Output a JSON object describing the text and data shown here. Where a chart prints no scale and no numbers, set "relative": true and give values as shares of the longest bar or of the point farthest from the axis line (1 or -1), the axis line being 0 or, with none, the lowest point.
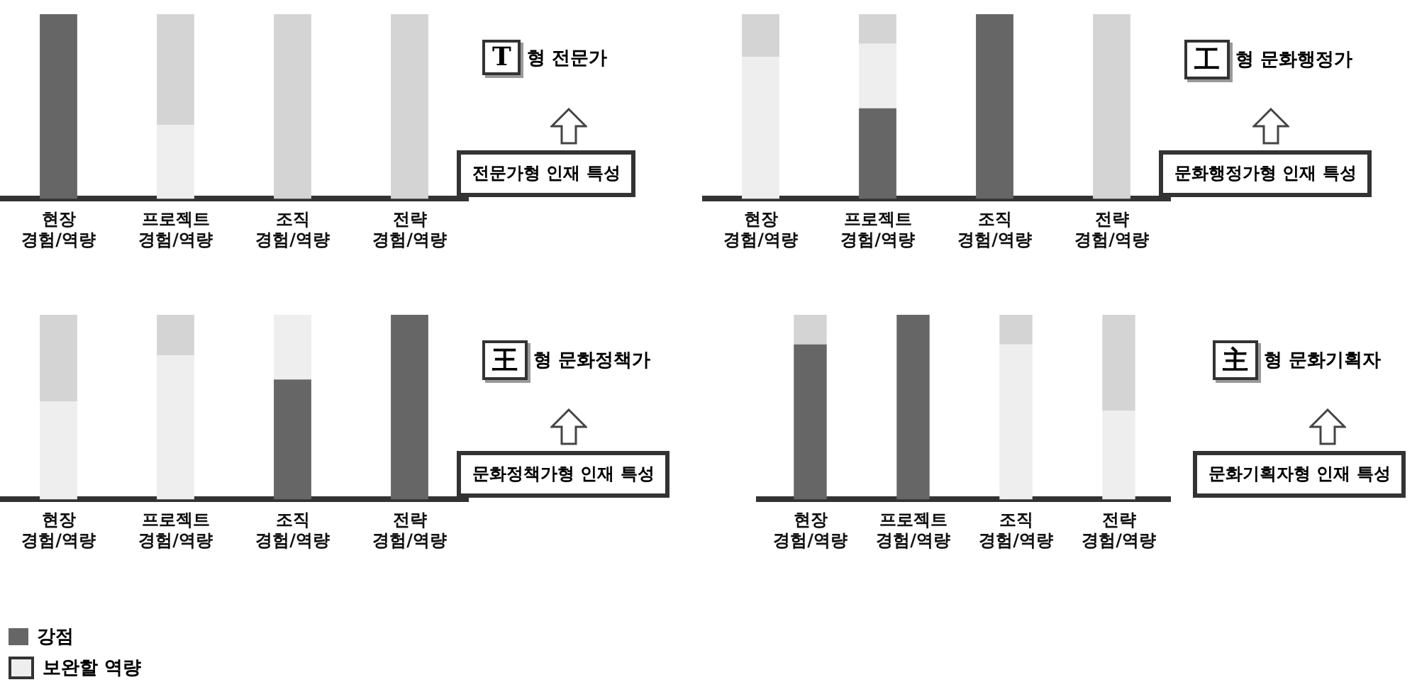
{
  "chart_data": [
    {
      "type": "bar",
      "stacked": true,
      "relative": true,
      "grid": false,
      "categories": [
        "현장 경험/역량",
        "프로젝트 경험/역량",
        "조직 경험/역량",
        "전략 경험/역량"
      ],
      "annotations": [
        "T 형 전문가",
        "전문가형 인재 특성"
      ],
      "series": [
        {
          "color": "#666666",
          "values": [
            1,
            0,
            0,
            0
          ]
        },
        {
          "color": "#eeeeee",
          "values": [
            0,
            0.4,
            0,
            0
          ]
        },
        {
          "color": "#d4d4d4",
          "values": [
            0,
            0.6,
            1,
            1
          ]
        }
      ]
    },
    {
      "type": "bar",
      "stacked": true,
      "relative": true,
      "grid": false,
      "categories": [
        "현장 경험/역량",
        "프로젝트 경험/역량",
        "조직 경험/역량",
        "전략 경험/역량"
      ],
      "annotations": [
        "工 형 문화행정가",
        "문화행정가형 인재 특성"
      ],
      "series": [
        {
          "color": "#666666",
          "values": [
            0,
            0.49,
            1,
            0
          ]
        },
        {
          "color": "#eeeeee",
          "values": [
            0.77,
            0.35,
            0,
            0
          ]
        },
        {
          "color": "#d4d4d4",
          "values": [
            0.23,
            0.16,
            0,
            1
          ]
        }
      ]
    },
    {
      "type": "bar",
      "stacked": true,
      "relative": true,
      "grid": false,
      "legend": "bottom left",
      "categories": [
        "현장 경험/역량",
        "프로젝트 경험/역량",
        "조직 경험/역량",
        "전략 경험/역량"
      ],
      "annotations": [
        "王 형 문화정책가",
        "문화정책가형 인재 특성"
      ],
      "series": [
        {
          "name": "강점",
          "color": "#666666",
          "values": [
            0,
            0,
            0.65,
            1
          ]
        },
        {
          "name": "보완할 역량",
          "color": "#eeeeee",
          "values": [
            0.53,
            0.78,
            0.35,
            0
          ]
        },
        {
          "color": "#d4d4d4",
          "values": [
            0.47,
            0.22,
            0,
            0
          ]
        }
      ]
    },
    {
      "type": "bar",
      "stacked": true,
      "relative": true,
      "grid": false,
      "categories": [
        "현장 경험/역량",
        "프로젝트 경험/역량",
        "조직 경험/역량",
        "전략 경험/역량"
      ],
      "annotations": [
        "主 형 문화기획자",
        "문화기획자형 인재 특성"
      ],
      "series": [
        {
          "color": "#666666",
          "values": [
            0.84,
            1,
            0,
            0
          ]
        },
        {
          "color": "#eeeeee",
          "values": [
            0,
            0,
            0.84,
            0.48
          ]
        },
        {
          "color": "#d4d4d4",
          "values": [
            0.16,
            0,
            0.16,
            0.52
          ]
        }
      ]
    }
  ]
}
